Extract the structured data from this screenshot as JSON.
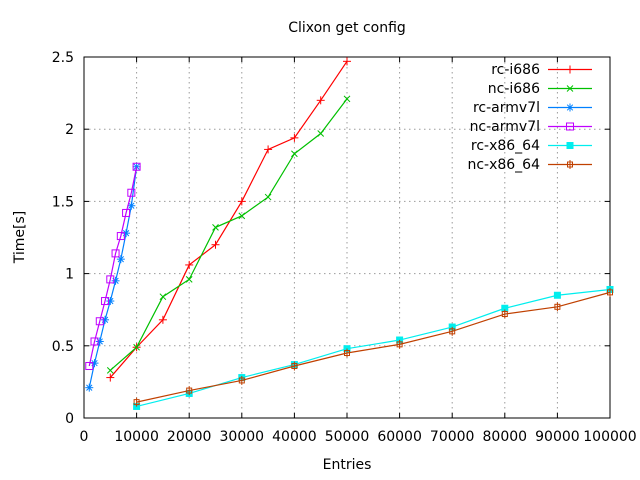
{
  "window": {
    "background": "#ffffff",
    "border_color": "#000000",
    "grid_color": "#9b9b9b",
    "text_color": "#000000"
  },
  "chart_data": {
    "type": "line",
    "title": "Clixon get config",
    "xlabel": "Entries",
    "ylabel": "Time[s]",
    "xlim": [
      0,
      100000
    ],
    "ylim": [
      0,
      2.5
    ],
    "x_ticks": [
      0,
      10000,
      20000,
      30000,
      40000,
      50000,
      60000,
      70000,
      80000,
      90000,
      100000
    ],
    "y_ticks": [
      0,
      0.5,
      1,
      1.5,
      2,
      2.5
    ],
    "grid": true,
    "legend_position": "top-right-inside",
    "series": [
      {
        "name": "rc-i686",
        "color": "#ff0000",
        "marker": "plus",
        "x": [
          5000,
          10000,
          15000,
          20000,
          25000,
          30000,
          35000,
          40000,
          45000,
          50000
        ],
        "y": [
          0.28,
          0.49,
          0.68,
          1.06,
          1.2,
          1.5,
          1.86,
          1.94,
          2.2,
          2.47
        ]
      },
      {
        "name": "nc-i686",
        "color": "#00c000",
        "marker": "cross",
        "x": [
          5000,
          10000,
          15000,
          20000,
          25000,
          30000,
          35000,
          40000,
          45000,
          50000
        ],
        "y": [
          0.33,
          0.49,
          0.84,
          0.96,
          1.32,
          1.4,
          1.53,
          1.83,
          1.97,
          2.21
        ]
      },
      {
        "name": "rc-armv7l",
        "color": "#0080ff",
        "marker": "asterisk",
        "x": [
          1000,
          2000,
          3000,
          4000,
          5000,
          6000,
          7000,
          8000,
          9000,
          10000
        ],
        "y": [
          0.21,
          0.38,
          0.53,
          0.68,
          0.81,
          0.95,
          1.1,
          1.28,
          1.47,
          1.74
        ]
      },
      {
        "name": "nc-armv7l",
        "color": "#c000ff",
        "marker": "open-square",
        "x": [
          1000,
          2000,
          3000,
          4000,
          5000,
          6000,
          7000,
          8000,
          9000,
          10000
        ],
        "y": [
          0.36,
          0.53,
          0.67,
          0.81,
          0.96,
          1.14,
          1.26,
          1.42,
          1.56,
          1.74
        ]
      },
      {
        "name": "rc-x86_64",
        "color": "#00eeee",
        "marker": "filled-square",
        "x": [
          10000,
          20000,
          30000,
          40000,
          50000,
          60000,
          70000,
          80000,
          90000,
          100000
        ],
        "y": [
          0.08,
          0.17,
          0.28,
          0.37,
          0.48,
          0.54,
          0.63,
          0.76,
          0.85,
          0.89
        ]
      },
      {
        "name": "nc-x86_64",
        "color": "#c04000",
        "marker": "open-square-vline",
        "x": [
          10000,
          20000,
          30000,
          40000,
          50000,
          60000,
          70000,
          80000,
          90000,
          100000
        ],
        "y": [
          0.11,
          0.19,
          0.26,
          0.36,
          0.45,
          0.51,
          0.6,
          0.72,
          0.77,
          0.87
        ]
      }
    ]
  }
}
